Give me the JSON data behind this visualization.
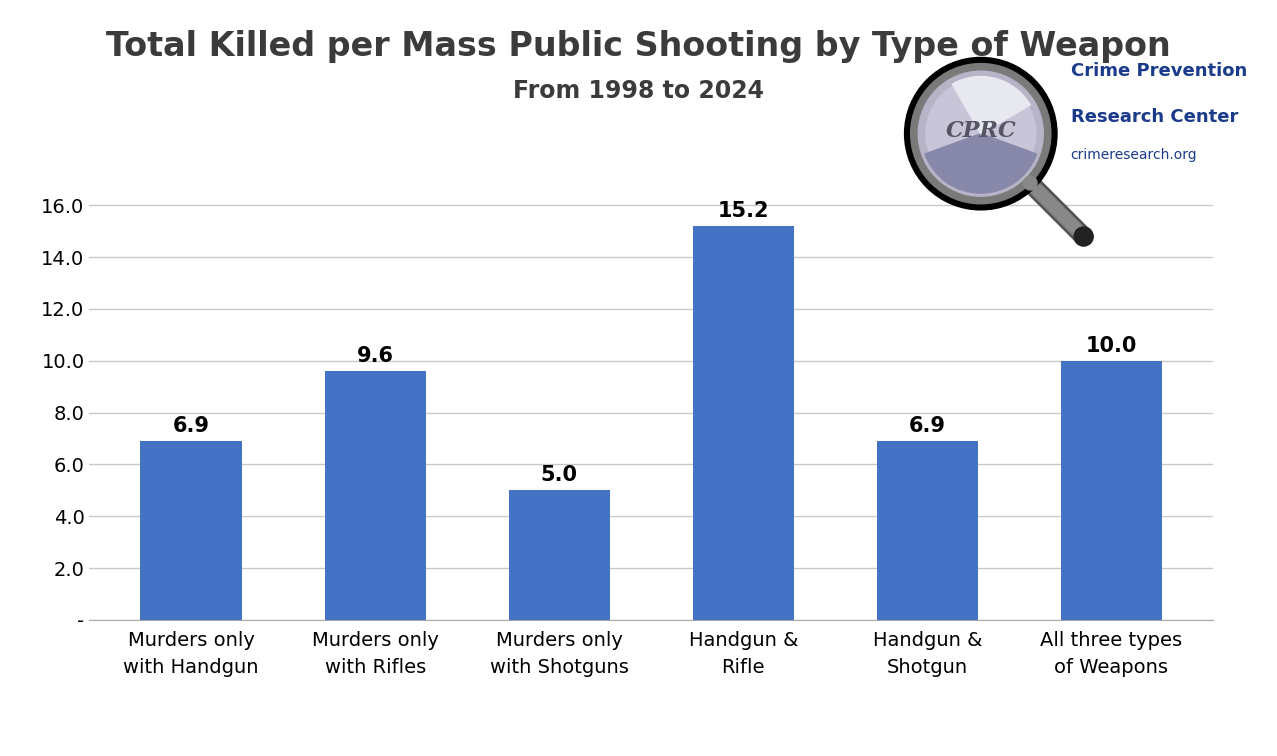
{
  "title": "Total Killed per Mass Public Shooting by Type of Weapon",
  "subtitle": "From 1998 to 2024",
  "categories": [
    "Murders only\nwith Handgun",
    "Murders only\nwith Rifles",
    "Murders only\nwith Shotguns",
    "Handgun &\nRifle",
    "Handgun &\nShotgun",
    "All three types\nof Weapons"
  ],
  "values": [
    6.9,
    9.6,
    5.0,
    15.2,
    6.9,
    10.0
  ],
  "bar_color": "#4472C4",
  "ylim": [
    0,
    17.5
  ],
  "yticks": [
    0,
    2.0,
    4.0,
    6.0,
    8.0,
    10.0,
    12.0,
    14.0,
    16.0
  ],
  "ytick_labels": [
    "-",
    "2.0",
    "4.0",
    "6.0",
    "8.0",
    "10.0",
    "12.0",
    "14.0",
    "16.0"
  ],
  "title_fontsize": 24,
  "subtitle_fontsize": 17,
  "label_fontsize": 14,
  "value_fontsize": 15,
  "tick_fontsize": 14,
  "title_color": "#3B3B3B",
  "subtitle_color": "#3B3B3B",
  "background_color": "#FFFFFF",
  "grid_color": "#C8C8C8",
  "bar_width": 0.55,
  "logo_text_color": "#1A3A8A",
  "logo_text1": "Crime Prevention",
  "logo_text2": "Research Center",
  "logo_text3": "crimeresearch.org"
}
